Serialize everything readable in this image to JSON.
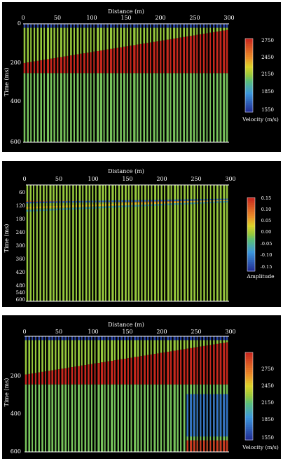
{
  "chart_data": [
    {
      "type": "heatmap",
      "title": "",
      "xlabel": "Distance (m)",
      "ylabel": "Time (ms)",
      "xticks": [
        "0",
        "50",
        "100",
        "150",
        "200",
        "250",
        "300"
      ],
      "yticks": [
        "0",
        "200",
        "400",
        "600"
      ],
      "xlim": [
        0,
        300
      ],
      "ylim": [
        0,
        600
      ],
      "layers": [
        {
          "name": "top",
          "top": [
            0,
            0
          ],
          "value": 1600
        },
        {
          "name": "upper",
          "top": [
            20,
            20
          ],
          "value": 2150
        },
        {
          "name": "wedge",
          "top": [
            200,
            30
          ],
          "value": 2750
        },
        {
          "name": "base",
          "top": [
            250,
            250
          ],
          "value": 2100
        }
      ],
      "colorbar": {
        "label": "Velocity (m/s)",
        "ticks": [
          "2750",
          "2450",
          "2150",
          "1850",
          "1550"
        ],
        "min": 1550,
        "max": 2750
      }
    },
    {
      "type": "heatmap",
      "title": "",
      "xlabel": "Distance (m)",
      "ylabel": "Time (ms)",
      "xticks": [
        "0",
        "50",
        "100",
        "150",
        "200",
        "250",
        "300"
      ],
      "yticks": [
        "60",
        "120",
        "180",
        "240",
        "300",
        "360",
        "420",
        "480",
        "540",
        "600"
      ],
      "xlim": [
        0,
        300
      ],
      "ylim": [
        40,
        600
      ],
      "reflectors": [
        {
          "time": [
            120,
            120
          ],
          "amplitude": 0.1
        },
        {
          "time": [
            125,
            110
          ],
          "amplitude": -0.1
        },
        {
          "time": [
            150,
            115
          ],
          "amplitude": 0.05
        },
        {
          "time": [
            165,
            120
          ],
          "amplitude": -0.05
        }
      ],
      "colorbar": {
        "label": "Amplitude",
        "ticks": [
          "0.15",
          "0.10",
          "0.05",
          "0.00",
          "-0.05",
          "-0.10",
          "-0.15"
        ],
        "min": -0.15,
        "max": 0.15
      }
    },
    {
      "type": "heatmap",
      "title": "",
      "xlabel": "Distance (m)",
      "ylabel": "Time (ms)",
      "xticks": [
        "0",
        "50",
        "100",
        "150",
        "200",
        "250",
        "300"
      ],
      "yticks": [
        "200",
        "400",
        "600"
      ],
      "xlim": [
        0,
        300
      ],
      "ylim": [
        0,
        600
      ],
      "layers": [
        {
          "name": "top",
          "top": [
            0,
            0
          ],
          "value": 1600
        },
        {
          "name": "upper",
          "top": [
            20,
            20
          ],
          "value": 2150
        },
        {
          "name": "wedge",
          "top": [
            200,
            30
          ],
          "value": 2750
        },
        {
          "name": "base",
          "top": [
            250,
            250
          ],
          "value": 2100
        }
      ],
      "anomaly": {
        "x": [
          235,
          300
        ],
        "time": [
          300,
          520
        ],
        "value": 1750
      },
      "deep_layer": {
        "x": [
          235,
          300
        ],
        "top": 540,
        "value": 2700
      },
      "colorbar": {
        "label": "Velocity (m/s)",
        "ticks": [
          "2750",
          "2450",
          "2150",
          "1850",
          "1550"
        ],
        "min": 1550,
        "max": 2750
      }
    }
  ]
}
